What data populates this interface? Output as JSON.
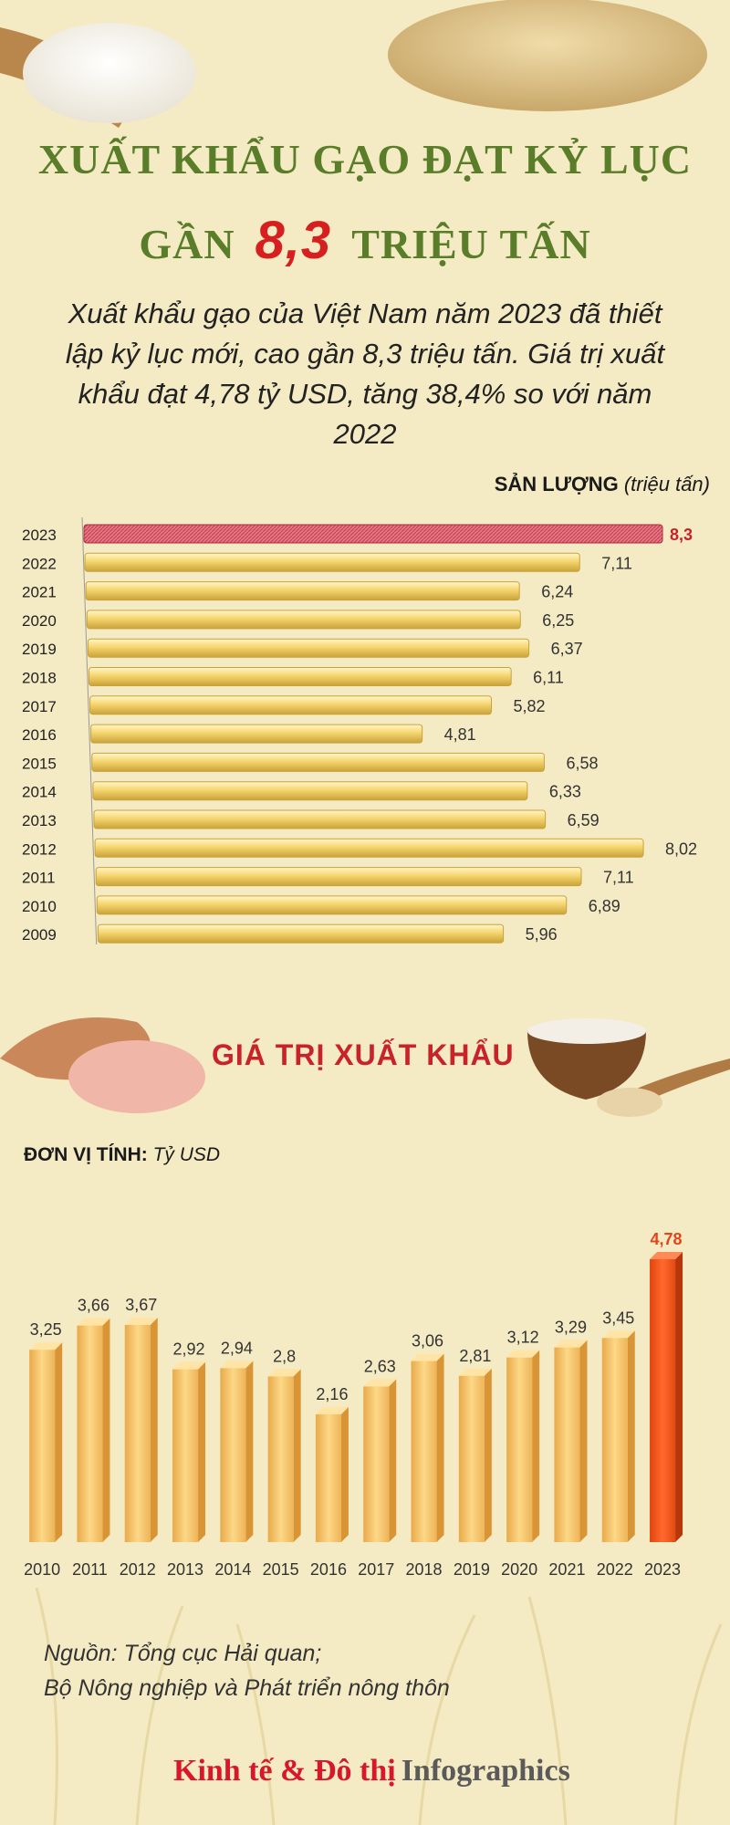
{
  "header": {
    "title_line1": "XUẤT KHẨU GẠO ĐẠT KỶ LỤC",
    "title_line2_pre": "GẦN",
    "title_line2_num": "8,3",
    "title_line2_post": "TRIỆU TẤN"
  },
  "intro": "Xuất khẩu gạo của Việt Nam năm 2023 đã thiết lập kỷ lục mới, cao gần 8,3 triệu tấn. Giá trị xuất khẩu đạt 4,78 tỷ USD, tăng 38,4% so với năm 2022",
  "volume_header": {
    "label": "SẢN LƯỢNG",
    "unit": "(triệu tấn)"
  },
  "value_section": {
    "title": "GIÁ TRỊ XUẤT KHẨU",
    "unit_label": "ĐƠN VỊ TÍNH:",
    "unit_value": "Tỷ USD"
  },
  "source": {
    "line1": "Nguồn: Tổng cục Hải quan;",
    "line2": "Bộ Nông nghiệp và Phát triển nông thôn"
  },
  "brand": {
    "name": "Kinh tế & Đô thị",
    "suffix": "Infographics"
  },
  "colors": {
    "title_green": "#5a7d2a",
    "highlight_red": "#d62020",
    "bar_gold": "#f6d56e",
    "value_bar_orange": "#f7c46c",
    "highlight_orange": "#f25a1f"
  },
  "chart_data": [
    {
      "type": "bar",
      "orientation": "horizontal",
      "categories": [
        "2023",
        "2022",
        "2021",
        "2020",
        "2019",
        "2018",
        "2017",
        "2016",
        "2015",
        "2014",
        "2013",
        "2012",
        "2011",
        "2010",
        "2009"
      ],
      "values": [
        8.3,
        7.11,
        6.24,
        6.25,
        6.37,
        6.11,
        5.82,
        4.81,
        6.58,
        6.33,
        6.59,
        8.02,
        7.11,
        6.89,
        5.96
      ],
      "labels": [
        "8,3",
        "7,11",
        "6,24",
        "6,25",
        "6,37",
        "6,11",
        "5,82",
        "4,81",
        "6,58",
        "6,33",
        "6,59",
        "8,02",
        "7,11",
        "6,89",
        "5,96"
      ],
      "highlight": "2023",
      "title": "SẢN LƯỢNG",
      "unit": "(triệu tấn)",
      "xlim": [
        0,
        8.3
      ]
    },
    {
      "type": "bar",
      "orientation": "vertical",
      "categories": [
        "2010",
        "2011",
        "2012",
        "2013",
        "2014",
        "2015",
        "2016",
        "2017",
        "2018",
        "2019",
        "2020",
        "2021",
        "2022",
        "2023"
      ],
      "values": [
        3.25,
        3.66,
        3.67,
        2.92,
        2.94,
        2.8,
        2.16,
        2.63,
        3.06,
        2.81,
        3.12,
        3.29,
        3.45,
        4.78
      ],
      "labels": [
        "3,25",
        "3,66",
        "3,67",
        "2,92",
        "2,94",
        "2,8",
        "2,16",
        "2,63",
        "3,06",
        "2,81",
        "3,12",
        "3,29",
        "3,45",
        "4,78"
      ],
      "highlight": "2023",
      "title": "GIÁ TRỊ XUẤT KHẨU",
      "unit": "Tỷ USD",
      "ylim": [
        0,
        4.78
      ]
    }
  ]
}
